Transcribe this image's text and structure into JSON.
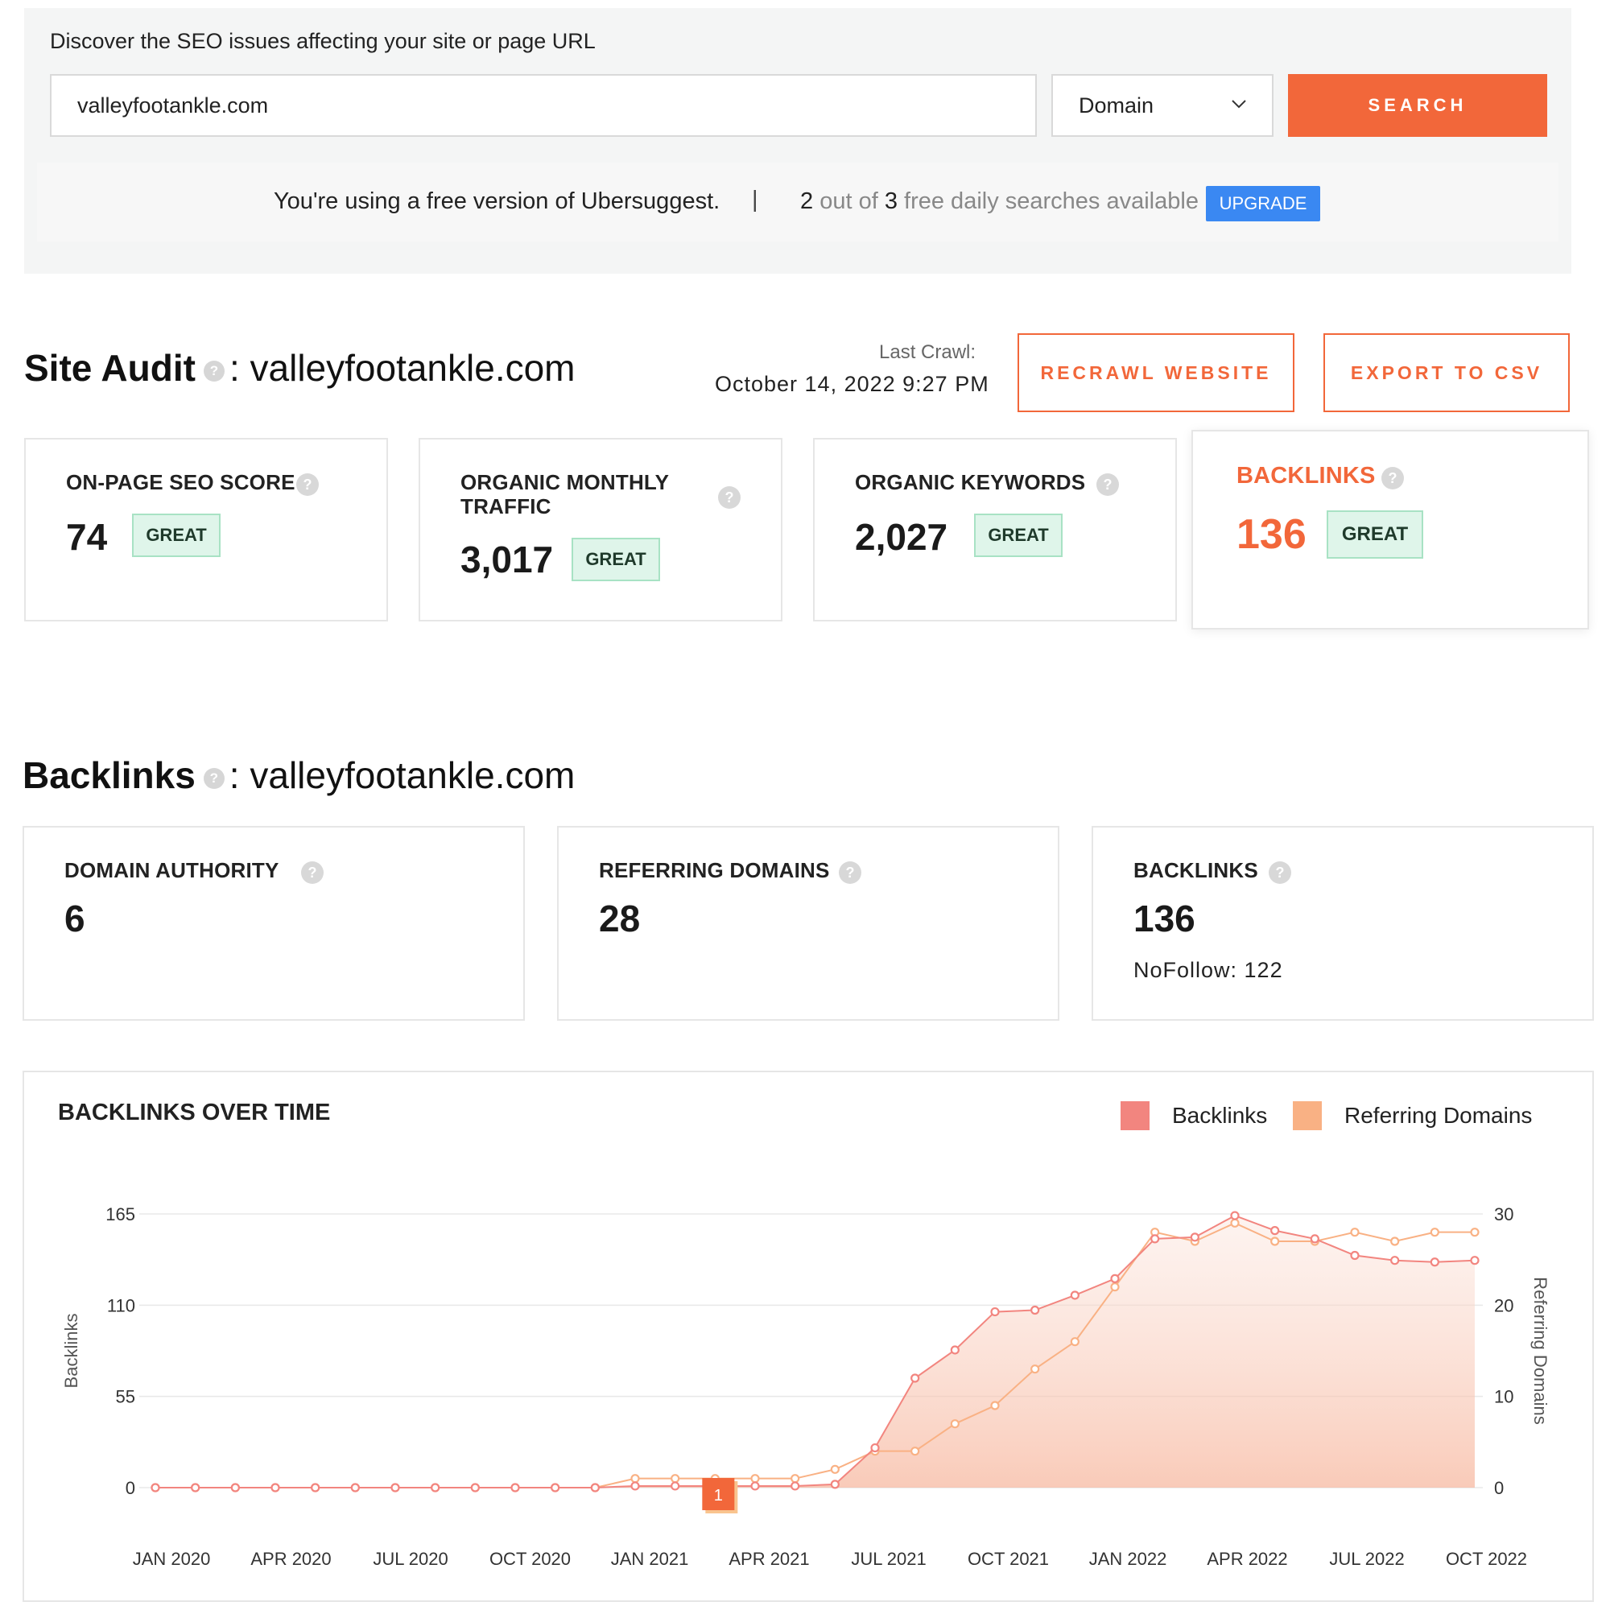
{
  "search": {
    "heading": "Discover the SEO issues affecting your site or page URL",
    "input_value": "valleyfootankle.com",
    "select_value": "Domain",
    "search_label": "SEARCH",
    "free_msg": "You're using a free version of Ubersuggest.",
    "separator": "|",
    "used": "2",
    "out_of": "out of",
    "total": "3",
    "avail_text": "free daily searches available",
    "upgrade_label": "UPGRADE"
  },
  "audit": {
    "title": "Site Audit",
    "domain": ": valleyfootankle.com",
    "last_crawl_label": "Last Crawl:",
    "last_crawl_date": "October 14, 2022 9:27 PM",
    "recrawl_label": "RECRAWL WEBSITE",
    "export_label": "EXPORT TO CSV",
    "cards": [
      {
        "label": "ON-PAGE SEO SCORE",
        "value": "74",
        "badge": "GREAT"
      },
      {
        "label_line1": "ORGANIC MONTHLY",
        "label_line2": "TRAFFIC",
        "value": "3,017",
        "badge": "GREAT"
      },
      {
        "label": "ORGANIC KEYWORDS",
        "value": "2,027",
        "badge": "GREAT"
      },
      {
        "label": "BACKLINKS",
        "value": "136",
        "badge": "GREAT"
      }
    ]
  },
  "backlinks": {
    "title": "Backlinks",
    "domain": ": valleyfootankle.com",
    "cards": [
      {
        "label": "DOMAIN AUTHORITY",
        "value": "6"
      },
      {
        "label": "REFERRING DOMAINS",
        "value": "28"
      },
      {
        "label": "BACKLINKS",
        "value": "136",
        "sub": "NoFollow: 122"
      }
    ]
  },
  "colors": {
    "accent": "#f2673a",
    "upgrade": "#3a88f2",
    "great_bg": "#dff5ea",
    "backlinks_series": "#f2857f",
    "referring_series": "#f9b184"
  },
  "chart_data": {
    "type": "line",
    "title": "BACKLINKS OVER TIME",
    "legend": [
      "Backlinks",
      "Referring Domains"
    ],
    "legend_position": "top-right",
    "xlabel": "",
    "ylabel": "Backlinks",
    "ylabel_right": "Referring Domains",
    "ylim": [
      0,
      165
    ],
    "ylim_right": [
      0,
      30
    ],
    "yticks": [
      "0",
      "55",
      "110",
      "165"
    ],
    "yticks_right": [
      "0",
      "10",
      "20",
      "30"
    ],
    "grid": true,
    "x_tick_labels": [
      "JAN 2020",
      "APR 2020",
      "JUL 2020",
      "OCT 2020",
      "JAN 2021",
      "APR 2021",
      "JUL 2021",
      "OCT 2021",
      "JAN 2022",
      "APR 2022",
      "JUL 2022",
      "OCT 2022"
    ],
    "x": [
      "JAN 2020",
      "FEB 2020",
      "MAR 2020",
      "APR 2020",
      "MAY 2020",
      "JUN 2020",
      "JUL 2020",
      "AUG 2020",
      "SEP 2020",
      "OCT 2020",
      "NOV 2020",
      "DEC 2020",
      "JAN 2021",
      "FEB 2021",
      "MAR 2021",
      "APR 2021",
      "MAY 2021",
      "JUN 2021",
      "JUL 2021",
      "AUG 2021",
      "SEP 2021",
      "OCT 2021",
      "NOV 2021",
      "DEC 2021",
      "JAN 2022",
      "FEB 2022",
      "MAR 2022",
      "APR 2022",
      "MAY 2022",
      "JUN 2022",
      "JUL 2022",
      "AUG 2022",
      "SEP 2022",
      "OCT 2022"
    ],
    "series": [
      {
        "name": "Backlinks",
        "axis": "left",
        "values": [
          0,
          0,
          0,
          0,
          0,
          0,
          0,
          0,
          0,
          0,
          0,
          0,
          1,
          1,
          1,
          1,
          1,
          2,
          24,
          66,
          83,
          106,
          107,
          116,
          126,
          150,
          151,
          164,
          155,
          150,
          140,
          137,
          136,
          137
        ]
      },
      {
        "name": "Referring Domains",
        "axis": "right",
        "values": [
          0,
          0,
          0,
          0,
          0,
          0,
          0,
          0,
          0,
          0,
          0,
          0,
          1,
          1,
          1,
          1,
          1,
          2,
          4,
          4,
          7,
          9,
          13,
          16,
          22,
          28,
          27,
          29,
          27,
          27,
          28,
          27,
          28,
          28
        ]
      }
    ],
    "annotation": "1"
  }
}
